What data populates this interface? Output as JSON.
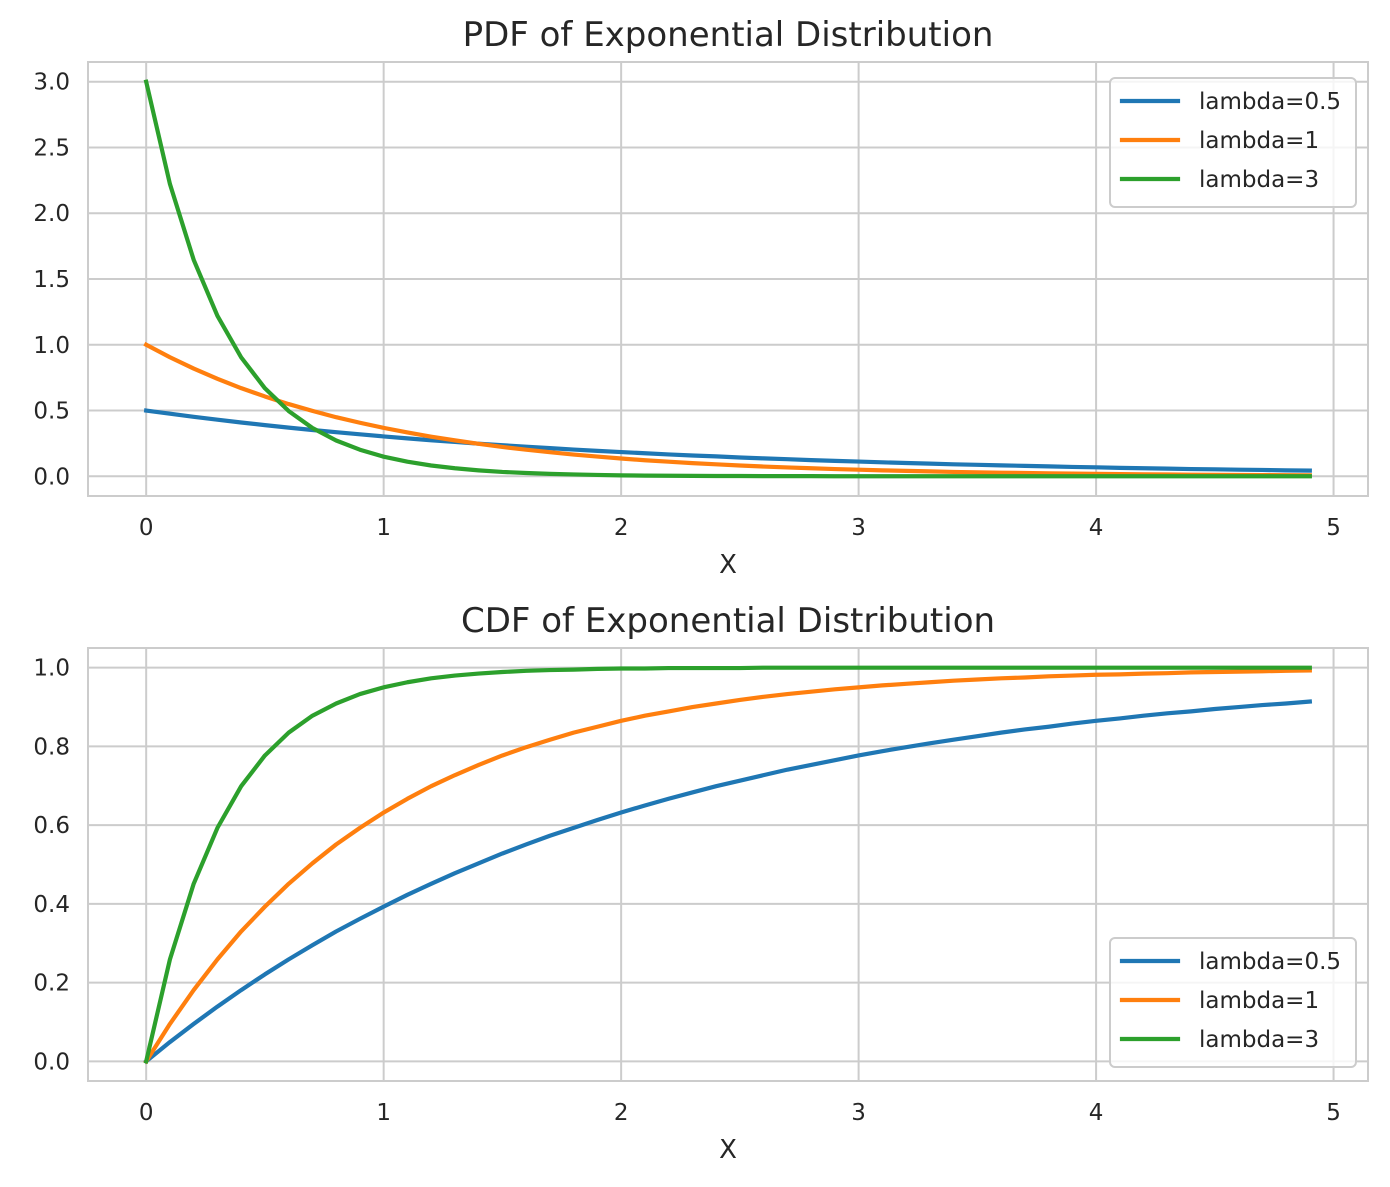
{
  "chart_data": [
    {
      "type": "line",
      "title": "PDF of Exponential Distribution",
      "xlabel": "X",
      "ylabel": "",
      "xlim": [
        -0.245,
        5.145
      ],
      "ylim": [
        -0.15,
        3.15
      ],
      "xticks": [
        0,
        1,
        2,
        3,
        4,
        5
      ],
      "xtick_labels": [
        "0",
        "1",
        "2",
        "3",
        "4",
        "5"
      ],
      "yticks": [
        0.0,
        0.5,
        1.0,
        1.5,
        2.0,
        2.5,
        3.0
      ],
      "ytick_labels": [
        "0.0",
        "0.5",
        "1.0",
        "1.5",
        "2.0",
        "2.5",
        "3.0"
      ],
      "grid": true,
      "legend": "top-right",
      "x": [
        0.0,
        0.1,
        0.2,
        0.3,
        0.4,
        0.5,
        0.6,
        0.7,
        0.8,
        0.9,
        1.0,
        1.1,
        1.2,
        1.3,
        1.4,
        1.5,
        1.6,
        1.7,
        1.8,
        1.9,
        2.0,
        2.1,
        2.2,
        2.3,
        2.4,
        2.5,
        2.6,
        2.7,
        2.8,
        2.9,
        3.0,
        3.1,
        3.2,
        3.3,
        3.4,
        3.5,
        3.6,
        3.7,
        3.8,
        3.9,
        4.0,
        4.1,
        4.2,
        4.3,
        4.4,
        4.5,
        4.6,
        4.7,
        4.8,
        4.9
      ],
      "series": [
        {
          "name": "lambda=0.5",
          "color": "#1f77b4",
          "values": [
            0.5,
            0.476,
            0.452,
            0.43,
            0.409,
            0.389,
            0.37,
            0.352,
            0.335,
            0.319,
            0.303,
            0.288,
            0.274,
            0.261,
            0.248,
            0.236,
            0.225,
            0.214,
            0.203,
            0.193,
            0.184,
            0.175,
            0.166,
            0.158,
            0.151,
            0.143,
            0.136,
            0.13,
            0.123,
            0.117,
            0.112,
            0.106,
            0.101,
            0.096,
            0.091,
            0.087,
            0.083,
            0.079,
            0.075,
            0.071,
            0.068,
            0.064,
            0.061,
            0.058,
            0.055,
            0.053,
            0.05,
            0.048,
            0.045,
            0.043
          ]
        },
        {
          "name": "lambda=1",
          "color": "#ff7f0e",
          "values": [
            1.0,
            0.905,
            0.819,
            0.741,
            0.67,
            0.607,
            0.549,
            0.497,
            0.449,
            0.407,
            0.368,
            0.333,
            0.301,
            0.273,
            0.247,
            0.223,
            0.202,
            0.183,
            0.165,
            0.15,
            0.135,
            0.122,
            0.111,
            0.1,
            0.091,
            0.082,
            0.074,
            0.067,
            0.061,
            0.055,
            0.05,
            0.045,
            0.041,
            0.037,
            0.033,
            0.03,
            0.027,
            0.025,
            0.022,
            0.02,
            0.018,
            0.017,
            0.015,
            0.014,
            0.012,
            0.011,
            0.01,
            0.009,
            0.008,
            0.007
          ]
        },
        {
          "name": "lambda=3",
          "color": "#2ca02c",
          "values": [
            3.0,
            2.222,
            1.646,
            1.22,
            0.904,
            0.669,
            0.496,
            0.367,
            0.272,
            0.202,
            0.149,
            0.111,
            0.082,
            0.061,
            0.045,
            0.033,
            0.025,
            0.018,
            0.014,
            0.01,
            0.007,
            0.005,
            0.004,
            0.003,
            0.002,
            0.002,
            0.001,
            0.001,
            0.001,
            0.0,
            0.0,
            0.0,
            0.0,
            0.0,
            0.0,
            0.0,
            0.0,
            0.0,
            0.0,
            0.0,
            0.0,
            0.0,
            0.0,
            0.0,
            0.0,
            0.0,
            0.0,
            0.0,
            0.0,
            0.0
          ]
        }
      ]
    },
    {
      "type": "line",
      "title": "CDF of Exponential Distribution",
      "xlabel": "X",
      "ylabel": "",
      "xlim": [
        -0.245,
        5.145
      ],
      "ylim": [
        -0.05,
        1.05
      ],
      "xticks": [
        0,
        1,
        2,
        3,
        4,
        5
      ],
      "xtick_labels": [
        "0",
        "1",
        "2",
        "3",
        "4",
        "5"
      ],
      "yticks": [
        0.0,
        0.2,
        0.4,
        0.6,
        0.8,
        1.0
      ],
      "ytick_labels": [
        "0.0",
        "0.2",
        "0.4",
        "0.6",
        "0.8",
        "1.0"
      ],
      "grid": true,
      "legend": "bottom-right",
      "x": [
        0.0,
        0.1,
        0.2,
        0.3,
        0.4,
        0.5,
        0.6,
        0.7,
        0.8,
        0.9,
        1.0,
        1.1,
        1.2,
        1.3,
        1.4,
        1.5,
        1.6,
        1.7,
        1.8,
        1.9,
        2.0,
        2.1,
        2.2,
        2.3,
        2.4,
        2.5,
        2.6,
        2.7,
        2.8,
        2.9,
        3.0,
        3.1,
        3.2,
        3.3,
        3.4,
        3.5,
        3.6,
        3.7,
        3.8,
        3.9,
        4.0,
        4.1,
        4.2,
        4.3,
        4.4,
        4.5,
        4.6,
        4.7,
        4.8,
        4.9
      ],
      "series": [
        {
          "name": "lambda=0.5",
          "color": "#1f77b4",
          "values": [
            0.0,
            0.049,
            0.095,
            0.139,
            0.181,
            0.221,
            0.259,
            0.295,
            0.33,
            0.362,
            0.393,
            0.423,
            0.451,
            0.478,
            0.503,
            0.528,
            0.551,
            0.573,
            0.593,
            0.613,
            0.632,
            0.65,
            0.667,
            0.683,
            0.699,
            0.713,
            0.727,
            0.741,
            0.753,
            0.765,
            0.777,
            0.788,
            0.798,
            0.808,
            0.817,
            0.826,
            0.835,
            0.843,
            0.85,
            0.858,
            0.865,
            0.871,
            0.878,
            0.884,
            0.889,
            0.895,
            0.9,
            0.905,
            0.909,
            0.914
          ]
        },
        {
          "name": "lambda=1",
          "color": "#ff7f0e",
          "values": [
            0.0,
            0.095,
            0.181,
            0.259,
            0.33,
            0.393,
            0.451,
            0.503,
            0.551,
            0.593,
            0.632,
            0.667,
            0.699,
            0.727,
            0.753,
            0.777,
            0.798,
            0.817,
            0.835,
            0.85,
            0.865,
            0.878,
            0.889,
            0.9,
            0.909,
            0.918,
            0.926,
            0.933,
            0.939,
            0.945,
            0.95,
            0.955,
            0.959,
            0.963,
            0.967,
            0.97,
            0.973,
            0.975,
            0.978,
            0.98,
            0.982,
            0.983,
            0.985,
            0.986,
            0.988,
            0.989,
            0.99,
            0.991,
            0.992,
            0.993
          ]
        },
        {
          "name": "lambda=3",
          "color": "#2ca02c",
          "values": [
            0.0,
            0.259,
            0.451,
            0.593,
            0.699,
            0.777,
            0.835,
            0.878,
            0.909,
            0.933,
            0.95,
            0.963,
            0.973,
            0.98,
            0.985,
            0.989,
            0.992,
            0.994,
            0.995,
            0.997,
            0.998,
            0.998,
            0.999,
            0.999,
            0.999,
            0.999,
            1.0,
            1.0,
            1.0,
            1.0,
            1.0,
            1.0,
            1.0,
            1.0,
            1.0,
            1.0,
            1.0,
            1.0,
            1.0,
            1.0,
            1.0,
            1.0,
            1.0,
            1.0,
            1.0,
            1.0,
            1.0,
            1.0,
            1.0,
            1.0
          ]
        }
      ]
    }
  ]
}
